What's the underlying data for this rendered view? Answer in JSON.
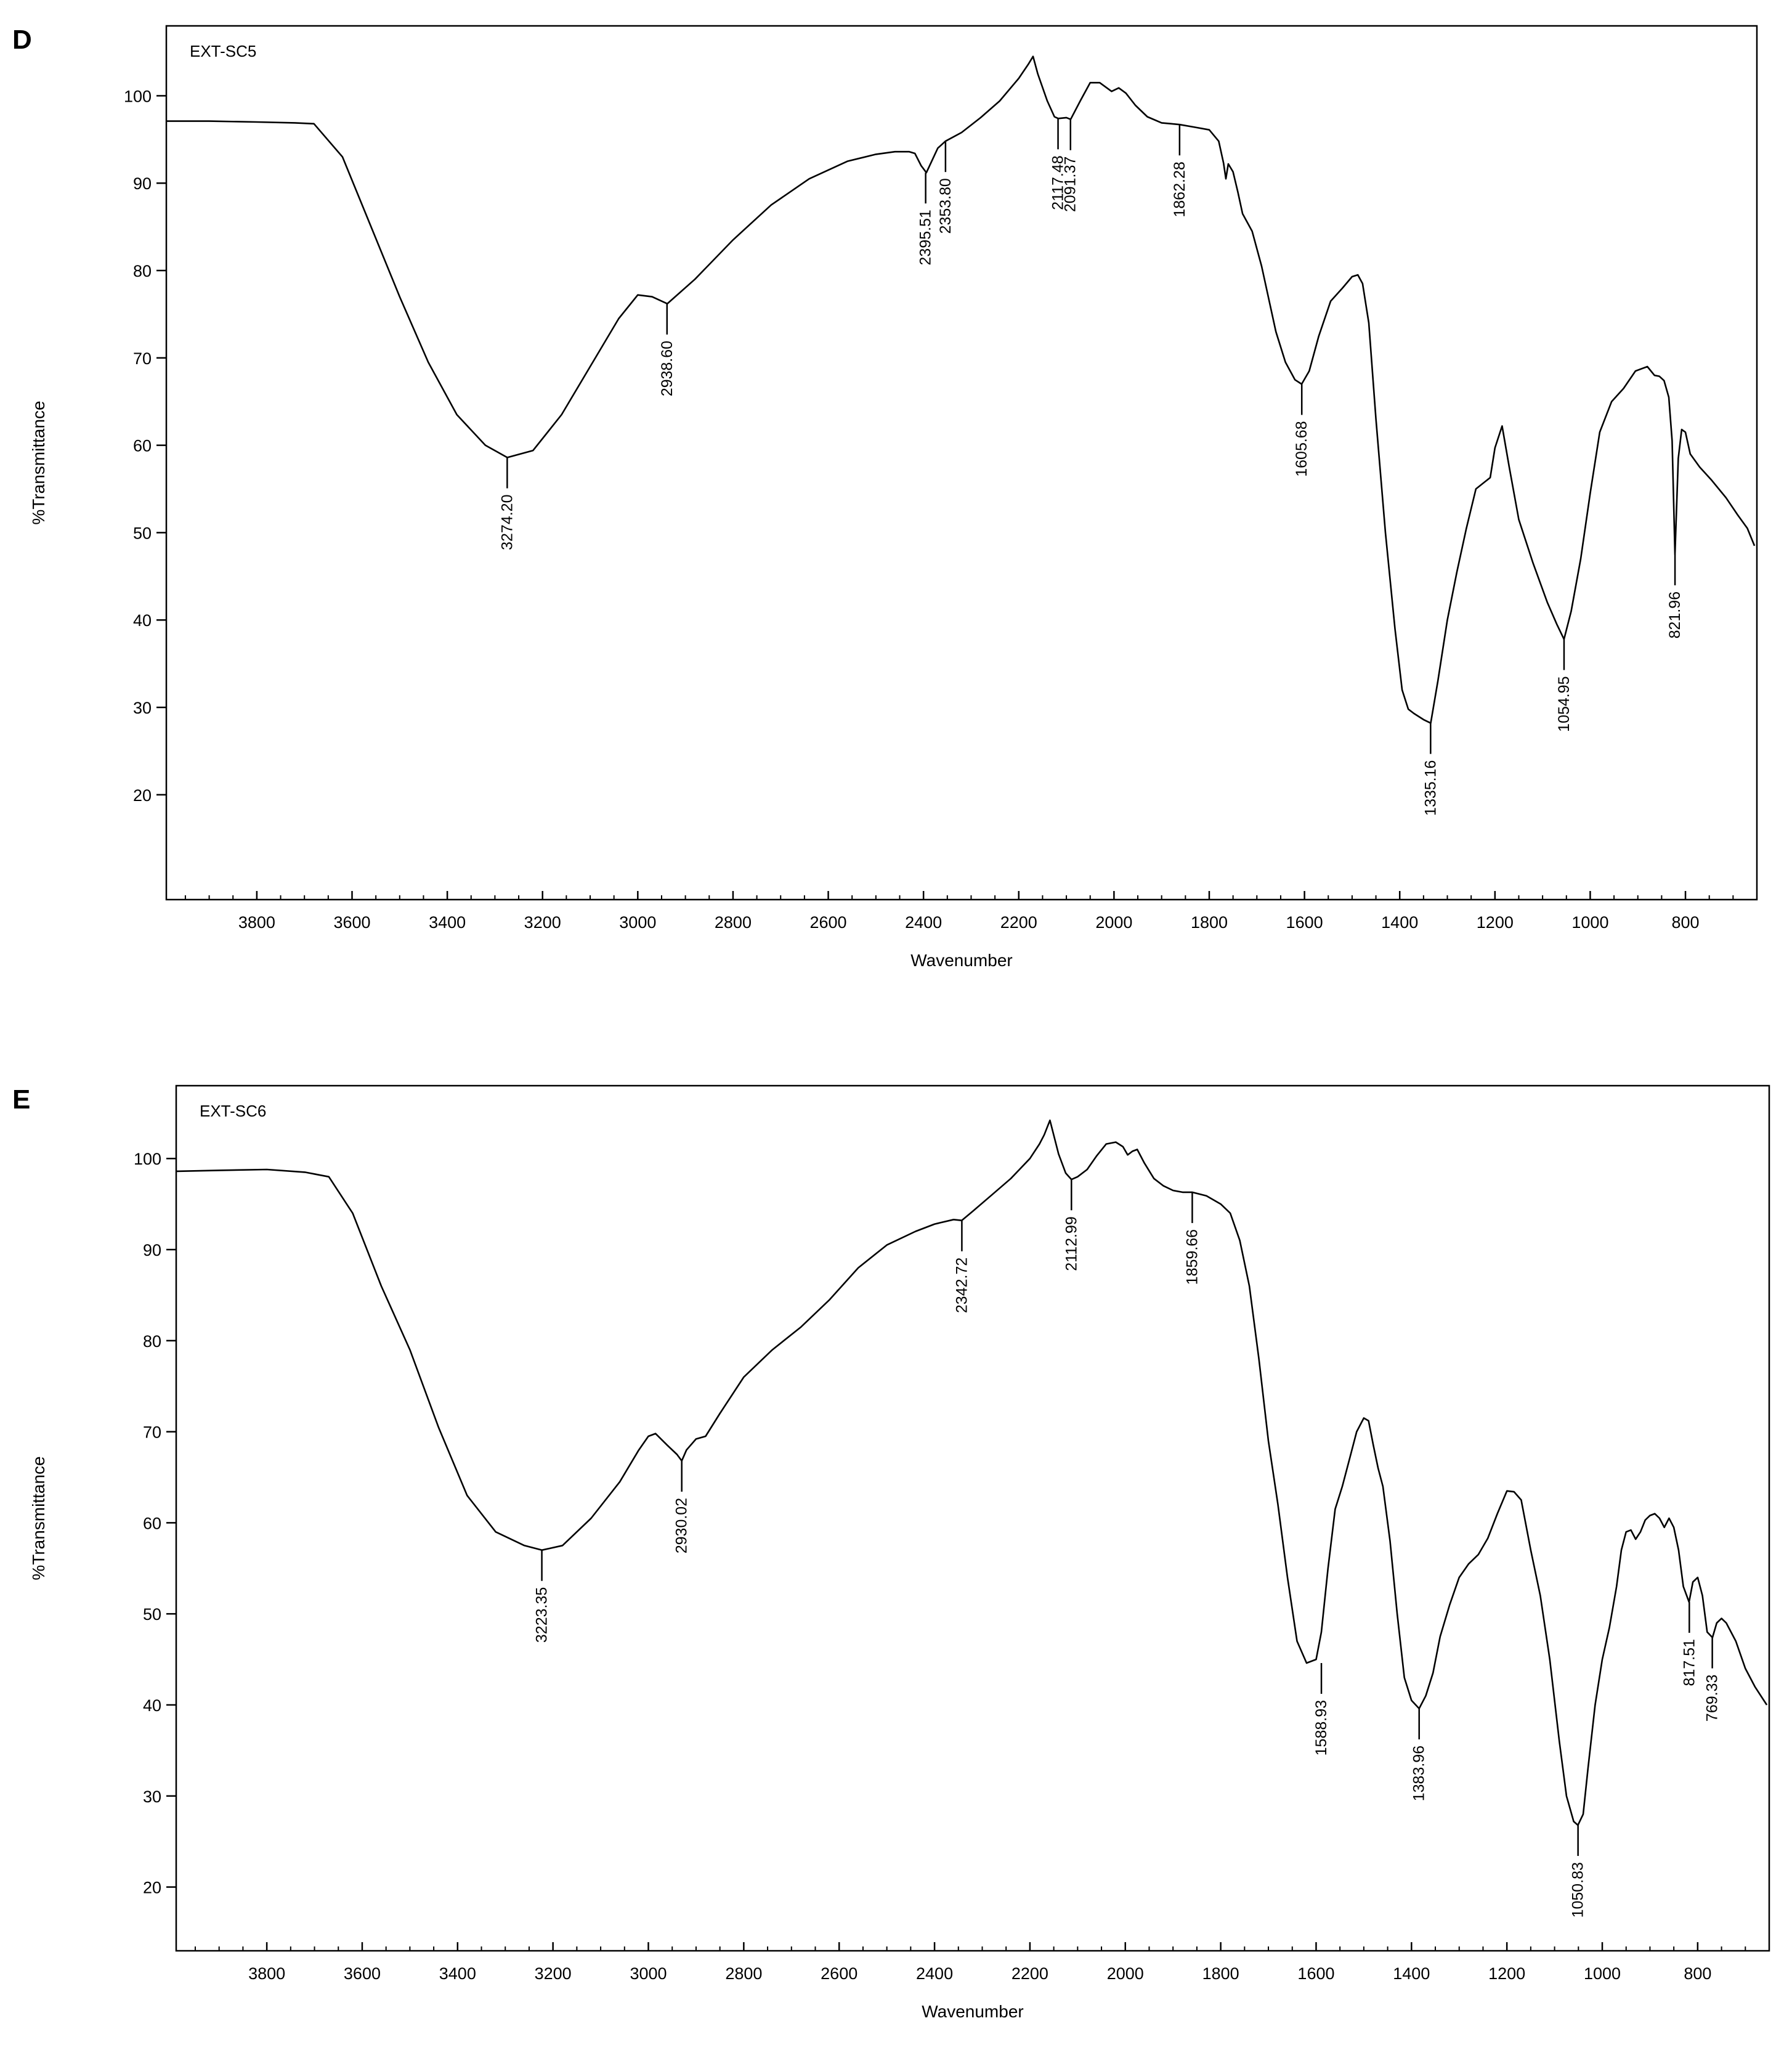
{
  "chart_data": [
    {
      "panel_label": "D",
      "type": "line",
      "title": "EXT-SC5",
      "xlabel": "Wavenumber",
      "ylabel": "%Transmittance",
      "xlim": [
        3990,
        650
      ],
      "ylim": [
        8,
        108
      ],
      "x_reversed": true,
      "grid": false,
      "legend": "none",
      "x_ticks": [
        3800,
        3600,
        3400,
        3200,
        3000,
        2800,
        2600,
        2400,
        2200,
        2000,
        1800,
        1600,
        1400,
        1200,
        1000,
        800
      ],
      "x_tick_labels": [
        "3800",
        "3600",
        "3400",
        "3200",
        "3000",
        "2800",
        "2600",
        "2400",
        "2200",
        "2000",
        "1800",
        "1600",
        "1400",
        "1200",
        "1000",
        "800"
      ],
      "y_ticks": [
        20,
        30,
        40,
        50,
        60,
        70,
        80,
        90,
        100
      ],
      "y_tick_labels": [
        "20",
        "30",
        "40",
        "50",
        "60",
        "70",
        "80",
        "90",
        "100"
      ],
      "series": [
        {
          "x": [
            3990,
            3900,
            3800,
            3720,
            3680,
            3620,
            3560,
            3500,
            3440,
            3380,
            3320,
            3274,
            3220,
            3160,
            3100,
            3040,
            3000,
            2970,
            2938,
            2880,
            2800,
            2720,
            2640,
            2560,
            2500,
            2460,
            2430,
            2418,
            2405,
            2394,
            2370,
            2354,
            2320,
            2280,
            2240,
            2200,
            2180,
            2170,
            2160,
            2140,
            2125,
            2117,
            2100,
            2091,
            2070,
            2050,
            2030,
            2005,
            1990,
            1975,
            1955,
            1930,
            1900,
            1880,
            1862,
            1830,
            1800,
            1780,
            1770,
            1765,
            1760,
            1750,
            1740,
            1730,
            1710,
            1690,
            1660,
            1640,
            1620,
            1606,
            1590,
            1570,
            1545,
            1520,
            1500,
            1488,
            1478,
            1465,
            1450,
            1430,
            1410,
            1395,
            1382,
            1370,
            1350,
            1335,
            1320,
            1300,
            1280,
            1260,
            1240,
            1210,
            1200,
            1185,
            1170,
            1150,
            1120,
            1090,
            1070,
            1055,
            1040,
            1020,
            1000,
            980,
            955,
            930,
            905,
            880,
            865,
            855,
            845,
            835,
            828,
            822,
            815,
            808,
            800,
            790,
            770,
            745,
            715,
            690,
            670,
            655
          ],
          "y": [
            97.1,
            97.1,
            97.0,
            96.9,
            96.8,
            93,
            85,
            77,
            69.5,
            63.5,
            60,
            58.6,
            59.4,
            63.5,
            69,
            74.5,
            77.2,
            77,
            76.2,
            79,
            83.5,
            87.5,
            90.5,
            92.5,
            93.3,
            93.6,
            93.6,
            93.4,
            92,
            91.2,
            94,
            94.8,
            95.8,
            97.5,
            99.4,
            102,
            103.6,
            104.5,
            102.5,
            99.4,
            97.6,
            97.4,
            97.5,
            97.3,
            99.5,
            101.5,
            101.5,
            100.5,
            100.9,
            100.3,
            98.9,
            97.6,
            96.9,
            96.8,
            96.7,
            96.4,
            96.1,
            94.8,
            92.3,
            90.5,
            92.2,
            91.3,
            89,
            86.5,
            84.5,
            80.5,
            73,
            69.5,
            67.5,
            67,
            68.5,
            72.5,
            76.5,
            78,
            79.3,
            79.5,
            78.5,
            74,
            63,
            50,
            39,
            32,
            29.8,
            29.3,
            28.6,
            28.2,
            33,
            40,
            45.5,
            50.5,
            55,
            56.3,
            59.7,
            62.2,
            57.5,
            51.5,
            46.5,
            42,
            39.5,
            37.8,
            41,
            47,
            54.5,
            61.5,
            65,
            66.5,
            68.5,
            69,
            68,
            67.9,
            67.4,
            65.5,
            60.5,
            47.5,
            58.5,
            61.8,
            61.5,
            59,
            57.5,
            56,
            54,
            52,
            50.5,
            48.5
          ]
        }
      ],
      "annotations": [
        {
          "x": 3274.2,
          "y": 58.6,
          "label": "3274.20"
        },
        {
          "x": 2938.6,
          "y": 76.2,
          "label": "2938.60"
        },
        {
          "x": 2395.51,
          "y": 91.2,
          "label": "2395.51"
        },
        {
          "x": 2353.8,
          "y": 94.8,
          "label": "2353.80"
        },
        {
          "x": 2117.48,
          "y": 97.4,
          "label": "2117.48"
        },
        {
          "x": 2091.37,
          "y": 97.3,
          "label": "2091.37"
        },
        {
          "x": 1862.28,
          "y": 96.7,
          "label": "1862.28"
        },
        {
          "x": 1605.68,
          "y": 67.0,
          "label": "1605.68"
        },
        {
          "x": 1335.16,
          "y": 28.2,
          "label": "1335.16"
        },
        {
          "x": 1054.95,
          "y": 37.8,
          "label": "1054.95"
        },
        {
          "x": 821.96,
          "y": 47.5,
          "label": "821.96"
        }
      ]
    },
    {
      "panel_label": "E",
      "type": "line",
      "title": "EXT-SC6",
      "xlabel": "Wavenumber",
      "ylabel": "%Transmittance",
      "xlim": [
        3990,
        650
      ],
      "ylim": [
        13,
        108
      ],
      "x_reversed": true,
      "grid": false,
      "legend": "none",
      "x_ticks": [
        3800,
        3600,
        3400,
        3200,
        3000,
        2800,
        2600,
        2400,
        2200,
        2000,
        1800,
        1600,
        1400,
        1200,
        1000,
        800
      ],
      "x_tick_labels": [
        "3800",
        "3600",
        "3400",
        "3200",
        "3000",
        "2800",
        "2600",
        "2400",
        "2200",
        "2000",
        "1800",
        "1600",
        "1400",
        "1200",
        "1000",
        "800"
      ],
      "y_ticks": [
        20,
        30,
        40,
        50,
        60,
        70,
        80,
        90,
        100
      ],
      "y_tick_labels": [
        "20",
        "30",
        "40",
        "50",
        "60",
        "70",
        "80",
        "90",
        "100"
      ],
      "series": [
        {
          "x": [
            3990,
            3900,
            3800,
            3720,
            3670,
            3620,
            3560,
            3500,
            3440,
            3380,
            3320,
            3260,
            3223,
            3180,
            3120,
            3060,
            3020,
            3000,
            2985,
            2960,
            2940,
            2930,
            2920,
            2900,
            2880,
            2850,
            2800,
            2740,
            2680,
            2620,
            2560,
            2500,
            2440,
            2400,
            2360,
            2343,
            2320,
            2280,
            2240,
            2200,
            2180,
            2170,
            2158,
            2140,
            2125,
            2113,
            2100,
            2080,
            2060,
            2040,
            2020,
            2005,
            1995,
            1985,
            1975,
            1960,
            1940,
            1920,
            1900,
            1880,
            1860,
            1830,
            1800,
            1780,
            1760,
            1740,
            1720,
            1700,
            1680,
            1660,
            1640,
            1620,
            1600,
            1589,
            1575,
            1560,
            1545,
            1530,
            1515,
            1500,
            1490,
            1480,
            1470,
            1460,
            1445,
            1430,
            1415,
            1400,
            1384,
            1370,
            1355,
            1340,
            1320,
            1300,
            1280,
            1260,
            1240,
            1220,
            1200,
            1185,
            1170,
            1150,
            1130,
            1110,
            1090,
            1075,
            1060,
            1051,
            1040,
            1030,
            1015,
            1000,
            985,
            970,
            960,
            950,
            940,
            930,
            920,
            910,
            900,
            890,
            880,
            870,
            860,
            850,
            840,
            830,
            818,
            810,
            800,
            790,
            780,
            769,
            760,
            750,
            740,
            720,
            700,
            680,
            655
          ],
          "y": [
            98.6,
            98.7,
            98.8,
            98.5,
            98,
            94,
            86,
            79,
            70.5,
            63,
            59,
            57.5,
            57.0,
            57.5,
            60.5,
            64.5,
            68,
            69.5,
            69.8,
            68.5,
            67.5,
            66.8,
            68,
            69.2,
            69.5,
            72,
            76,
            79,
            81.5,
            84.5,
            88,
            90.5,
            92,
            92.8,
            93.3,
            93.2,
            94.2,
            96,
            97.8,
            100,
            101.6,
            102.6,
            104.2,
            100.5,
            98.4,
            97.7,
            98,
            98.8,
            100.3,
            101.6,
            101.8,
            101.3,
            100.4,
            100.8,
            101,
            99.5,
            97.8,
            97,
            96.5,
            96.3,
            96.3,
            95.9,
            95,
            94,
            91,
            86,
            78,
            69,
            62,
            54,
            47,
            44.6,
            45,
            48,
            55,
            61.5,
            64,
            67,
            70,
            71.5,
            71.2,
            68.5,
            66,
            64,
            58,
            50,
            43,
            40.5,
            39.6,
            41,
            43.5,
            47.5,
            51,
            54,
            55.5,
            56.5,
            58.3,
            61,
            63.5,
            63.4,
            62.5,
            57,
            52,
            45,
            36,
            30,
            27.2,
            26.8,
            28,
            33,
            40,
            45,
            48.5,
            53,
            57,
            59,
            59.2,
            58.2,
            59,
            60.3,
            60.8,
            61,
            60.5,
            59.5,
            60.5,
            59.5,
            57,
            53,
            51.3,
            53.5,
            54,
            52,
            48,
            47.4,
            49,
            49.5,
            49,
            47,
            44,
            42,
            40
          ]
        }
      ],
      "annotations": [
        {
          "x": 3223.35,
          "y": 57.0,
          "label": "3223.35"
        },
        {
          "x": 2930.02,
          "y": 66.8,
          "label": "2930.02"
        },
        {
          "x": 2342.72,
          "y": 93.2,
          "label": "2342.72"
        },
        {
          "x": 2112.99,
          "y": 97.7,
          "label": "2112.99"
        },
        {
          "x": 1859.66,
          "y": 96.3,
          "label": "1859.66"
        },
        {
          "x": 1588.93,
          "y": 44.6,
          "label": "1588.93"
        },
        {
          "x": 1383.96,
          "y": 39.6,
          "label": "1383.96"
        },
        {
          "x": 1050.83,
          "y": 26.8,
          "label": "1050.83"
        },
        {
          "x": 817.51,
          "y": 51.3,
          "label": "817.51"
        },
        {
          "x": 769.33,
          "y": 47.4,
          "label": "769.33"
        }
      ]
    }
  ]
}
